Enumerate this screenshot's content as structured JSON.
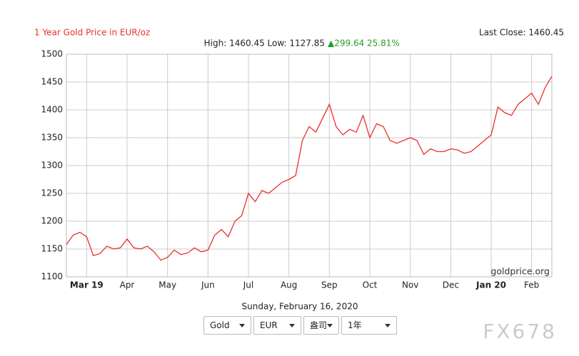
{
  "chart_data": {
    "type": "line",
    "title": "1 Year Gold Price in EUR/oz",
    "summary": "High: 1460.45 Low: 1127.85",
    "change": "▲299.64 25.81%",
    "last_close": "Last Close: 1460.45",
    "source": "goldprice.org",
    "categories": [
      null,
      null,
      null,
      "Mar 19",
      null,
      null,
      null,
      null,
      null,
      "Apr",
      null,
      null,
      null,
      null,
      null,
      "May",
      null,
      null,
      null,
      null,
      null,
      "Jun",
      null,
      null,
      null,
      null,
      null,
      "Jul",
      null,
      null,
      null,
      null,
      null,
      "Aug",
      null,
      null,
      null,
      null,
      null,
      "Sep",
      null,
      null,
      null,
      null,
      null,
      "Oct",
      null,
      null,
      null,
      null,
      null,
      "Nov",
      null,
      null,
      null,
      null,
      null,
      "Dec",
      null,
      null,
      null,
      null,
      null,
      "Jan 20",
      null,
      null,
      null,
      null,
      null,
      "Feb",
      null,
      null,
      null
    ],
    "values": [
      1158,
      1175,
      1180,
      1172,
      1138,
      1142,
      1155,
      1150,
      1152,
      1168,
      1152,
      1150,
      1155,
      1145,
      1130,
      1135,
      1148,
      1140,
      1143,
      1152,
      1145,
      1148,
      1175,
      1185,
      1172,
      1200,
      1210,
      1250,
      1235,
      1255,
      1250,
      1260,
      1270,
      1275,
      1282,
      1345,
      1370,
      1360,
      1385,
      1410,
      1370,
      1355,
      1365,
      1360,
      1390,
      1350,
      1375,
      1370,
      1345,
      1340,
      1345,
      1350,
      1345,
      1320,
      1330,
      1325,
      1325,
      1330,
      1328,
      1322,
      1325,
      1335,
      1345,
      1355,
      1405,
      1395,
      1390,
      1410,
      1420,
      1430,
      1410,
      1440,
      1460.45
    ],
    "color": "#e8302a",
    "ylim": [
      1100,
      1500
    ],
    "yticks": [
      1100,
      1150,
      1200,
      1250,
      1300,
      1350,
      1400,
      1450,
      1500
    ],
    "grid": true
  },
  "controls": {
    "date": "Sunday, February 16, 2020",
    "selects": [
      "Gold",
      "EUR",
      "盎司",
      "1年"
    ]
  },
  "watermark": "FX678"
}
